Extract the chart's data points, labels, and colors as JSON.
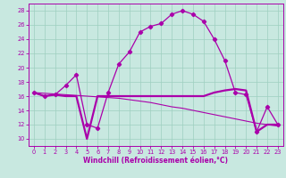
{
  "xlabel": "Windchill (Refroidissement éolien,°C)",
  "bg_color": "#c8e8e0",
  "grid_color": "#9ecfbf",
  "line_color": "#aa00aa",
  "hours": [
    0,
    1,
    2,
    3,
    4,
    5,
    6,
    7,
    8,
    9,
    10,
    11,
    12,
    13,
    14,
    15,
    16,
    17,
    18,
    19,
    20,
    21,
    22,
    23
  ],
  "temp": [
    16.5,
    16.0,
    16.2,
    17.5,
    19.0,
    12.0,
    11.5,
    16.5,
    20.5,
    22.2,
    25.0,
    25.8,
    26.2,
    27.5,
    28.0,
    27.5,
    26.5,
    24.0,
    21.0,
    16.5,
    16.2,
    11.0,
    14.5,
    12.0
  ],
  "windchill": [
    16.5,
    16.0,
    16.2,
    16.0,
    16.0,
    10.0,
    16.0,
    16.0,
    16.0,
    16.0,
    16.0,
    16.0,
    16.0,
    16.0,
    16.0,
    16.0,
    16.0,
    16.5,
    16.8,
    17.0,
    16.8,
    11.0,
    12.0,
    12.0
  ],
  "ref_line": [
    16.5,
    16.4,
    16.3,
    16.2,
    16.1,
    16.0,
    15.9,
    15.8,
    15.7,
    15.5,
    15.3,
    15.1,
    14.8,
    14.5,
    14.3,
    14.0,
    13.7,
    13.4,
    13.1,
    12.8,
    12.5,
    12.2,
    12.0,
    11.8
  ],
  "ylim": [
    9,
    29
  ],
  "yticks": [
    10,
    12,
    14,
    16,
    18,
    20,
    22,
    24,
    26,
    28
  ],
  "xlim": [
    -0.5,
    23.5
  ],
  "xticks": [
    0,
    1,
    2,
    3,
    4,
    5,
    6,
    7,
    8,
    9,
    10,
    11,
    12,
    13,
    14,
    15,
    16,
    17,
    18,
    19,
    20,
    21,
    22,
    23
  ],
  "xlabel_fontsize": 5.5,
  "tick_fontsize": 4.8,
  "linewidth_temp": 0.9,
  "linewidth_wind": 1.6,
  "linewidth_ref": 0.8,
  "marker_size": 2.2
}
